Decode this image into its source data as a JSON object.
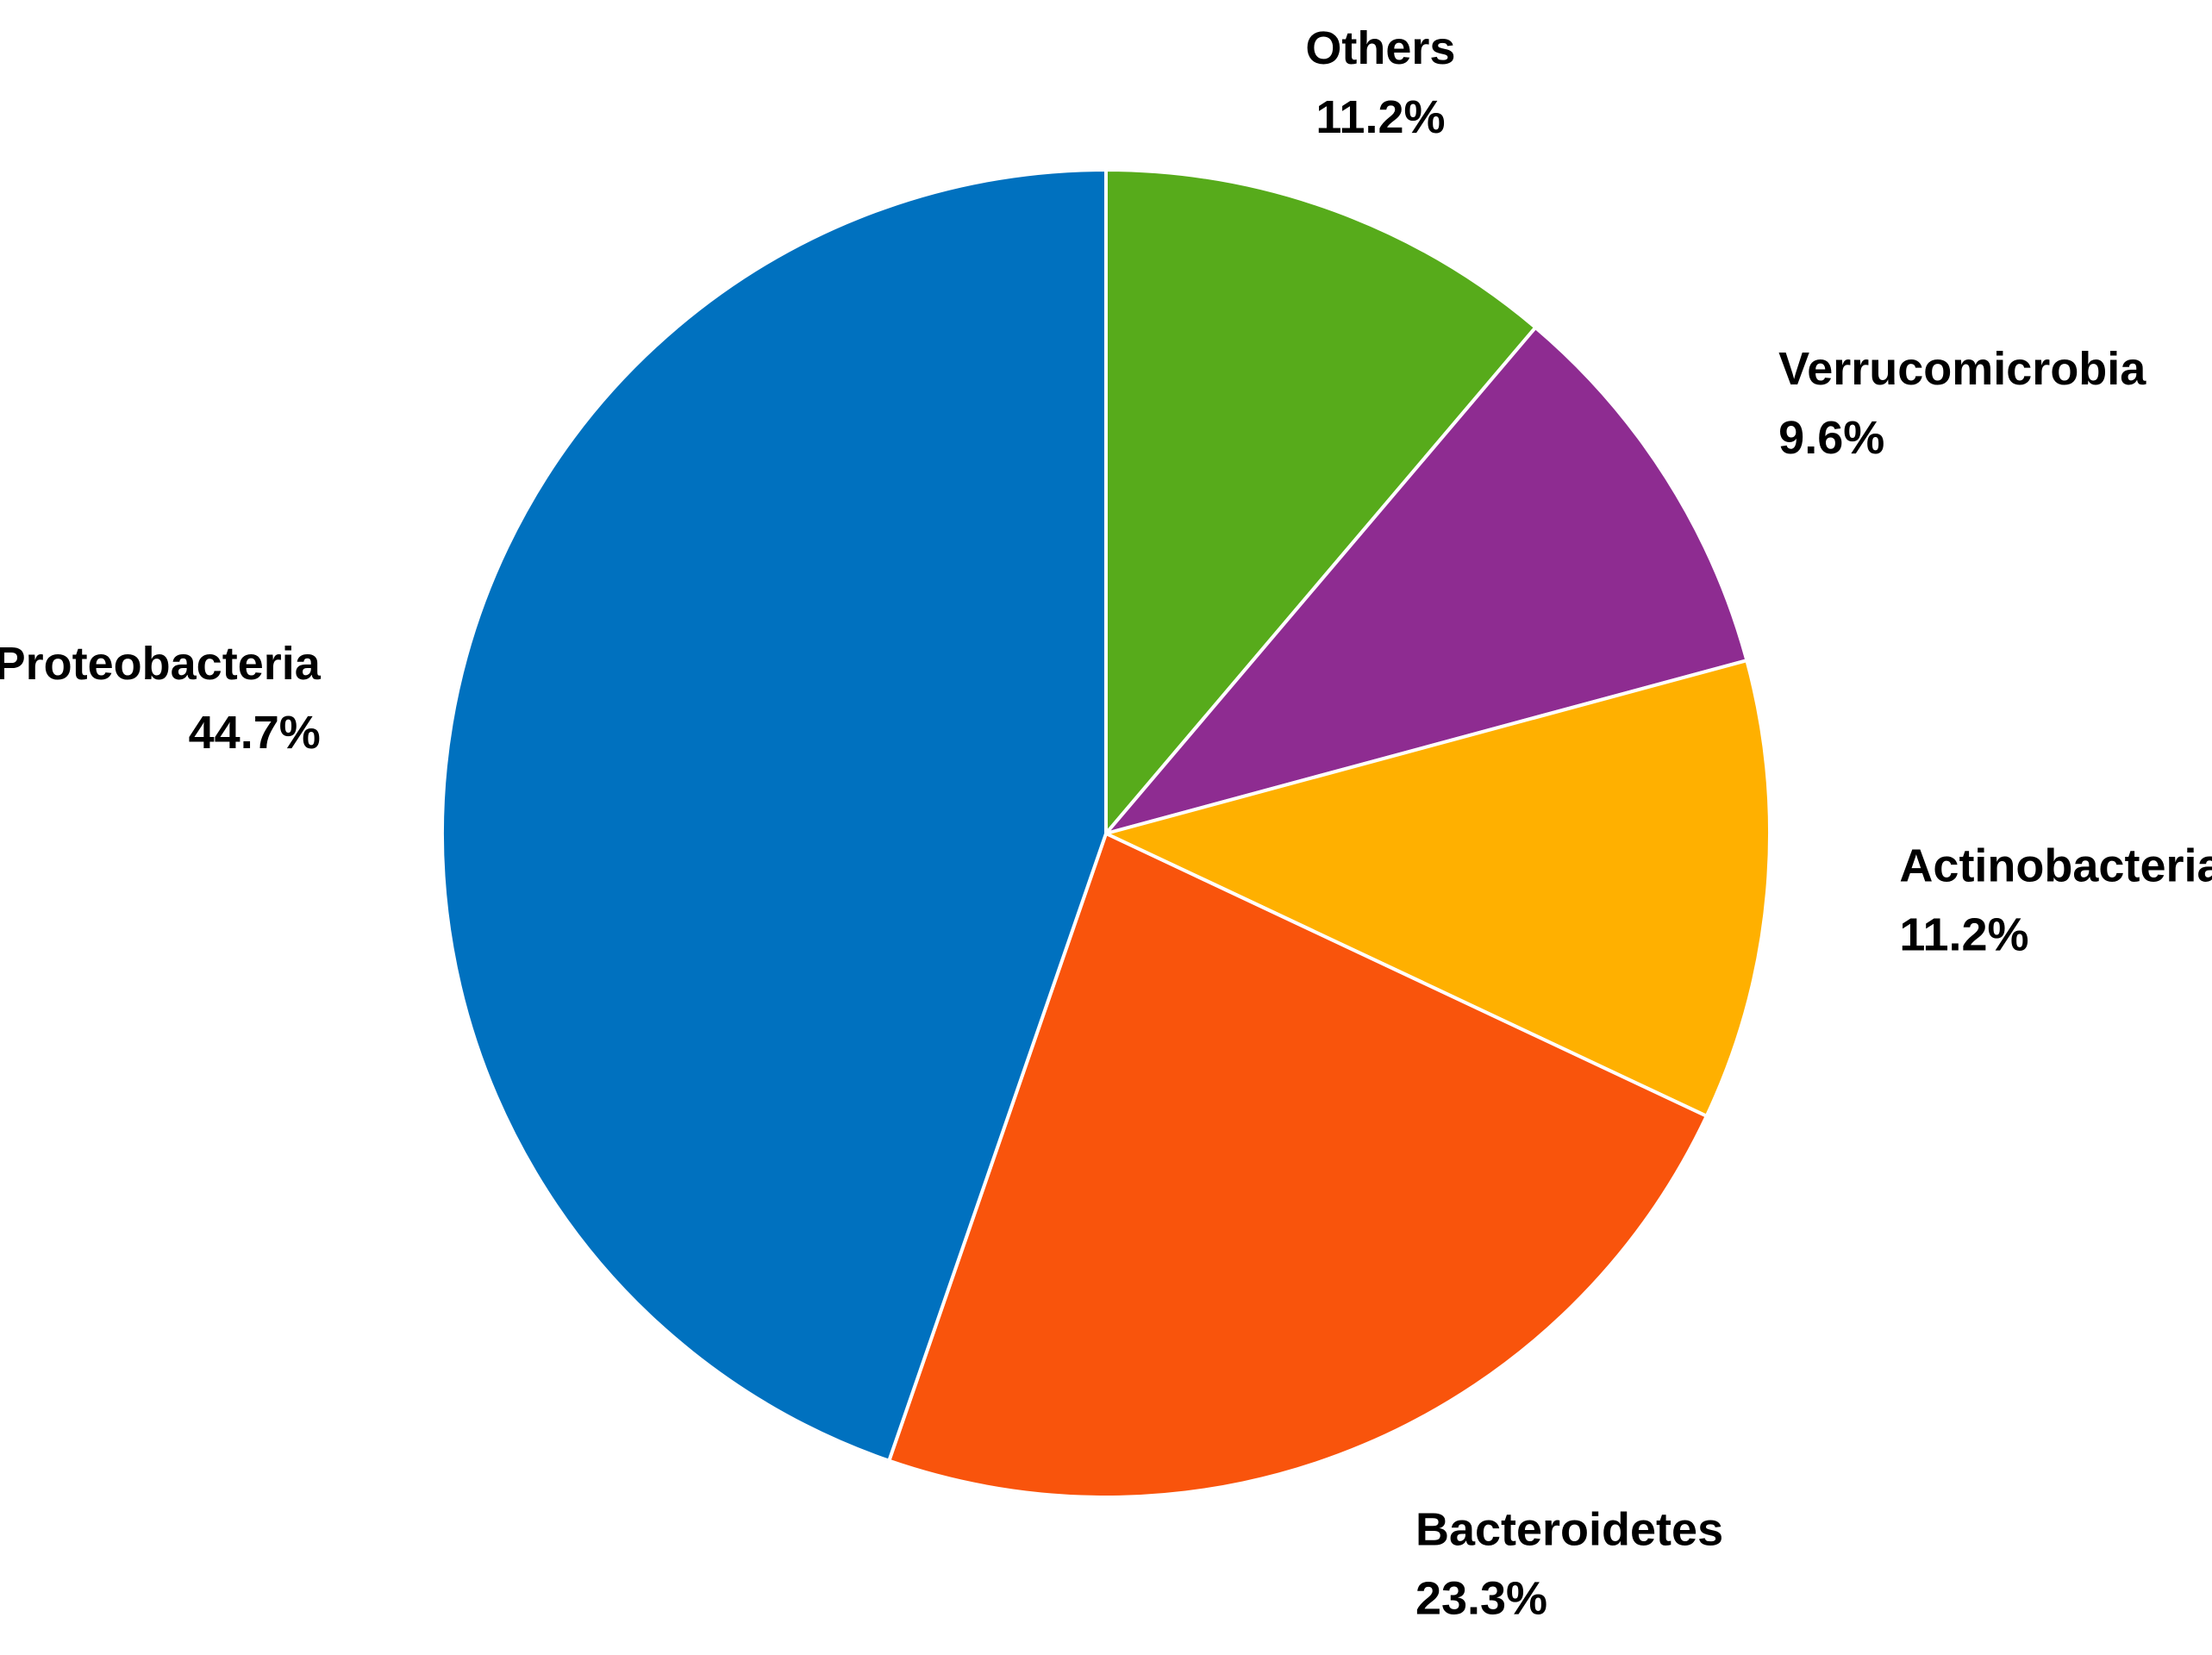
{
  "chart_data": {
    "type": "pie",
    "categories": [
      "Others",
      "Verrucomicrobia",
      "Actinobacteria",
      "Bacteroidetes",
      "Proteobacteria"
    ],
    "values": [
      11.2,
      9.6,
      11.2,
      23.3,
      44.7
    ],
    "value_labels": [
      "11.2%",
      "9.6%",
      "11.2%",
      "23.3%",
      "44.7%"
    ],
    "colors": [
      "#57ab1b",
      "#8e2c91",
      "#ffb000",
      "#f9540c",
      "#0071bf"
    ]
  }
}
